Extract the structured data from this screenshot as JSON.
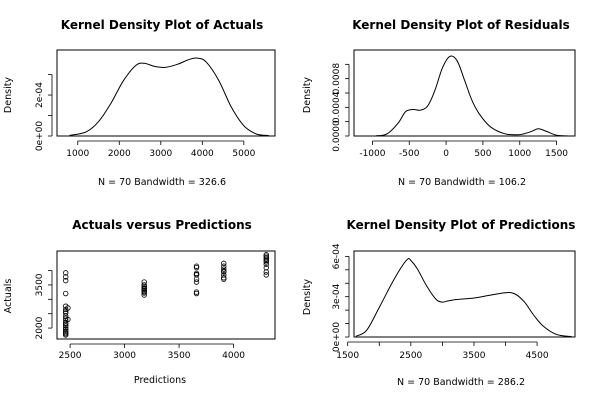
{
  "chart_data": [
    {
      "type": "line",
      "title": "Kernel Density Plot of Actuals",
      "xlabel": "N = 70   Bandwidth = 326.6",
      "ylabel": "Density",
      "xlim": [
        500,
        5750
      ],
      "ylim": [
        0,
        0.00042
      ],
      "xticks": [
        1000,
        2000,
        3000,
        4000,
        5000
      ],
      "xtick_labels": [
        "1000",
        "2000",
        "3000",
        "4000",
        "5000"
      ],
      "yticks": [
        0,
        0.0002
      ],
      "ytick_labels": [
        "0e+00",
        "2e-04"
      ],
      "extra_yticks": [
        0.0001,
        0.0003
      ],
      "series": [
        {
          "x": [
            800,
            1200,
            1500,
            1800,
            2100,
            2400,
            2600,
            2850,
            3100,
            3400,
            3700,
            3900,
            4100,
            4400,
            4700,
            5000,
            5300,
            5600
          ],
          "y": [
            3e-06,
            2e-05,
            7e-05,
            0.00016,
            0.00027,
            0.000345,
            0.000355,
            0.00034,
            0.000335,
            0.00035,
            0.000375,
            0.00038,
            0.00036,
            0.00027,
            0.00014,
            5e-05,
            1e-05,
            2e-06
          ]
        }
      ]
    },
    {
      "type": "line",
      "title": "Kernel Density Plot of Residuals",
      "xlabel": "N = 70   Bandwidth = 106.2",
      "ylabel": "Density",
      "xlim": [
        -1250,
        1750
      ],
      "ylim": [
        0,
        0.0012
      ],
      "xticks": [
        -1000,
        -500,
        0,
        500,
        1000,
        1500
      ],
      "xtick_labels": [
        "-1000",
        "-500",
        "0",
        "500",
        "1000",
        "1500"
      ],
      "yticks": [
        0,
        0.0004,
        0.0008
      ],
      "ytick_labels": [
        "0.0000",
        "0.0004",
        "0.0008"
      ],
      "extra_yticks": [
        0.0002,
        0.0006,
        0.001
      ],
      "series": [
        {
          "x": [
            -950,
            -800,
            -650,
            -550,
            -450,
            -350,
            -250,
            -150,
            -50,
            50,
            150,
            250,
            350,
            450,
            600,
            800,
            1000,
            1150,
            1250,
            1350,
            1500,
            1650
          ],
          "y": [
            3e-06,
            3e-05,
            0.00018,
            0.00034,
            0.00037,
            0.00036,
            0.00042,
            0.00064,
            0.00095,
            0.00111,
            0.00105,
            0.00078,
            0.0005,
            0.00031,
            0.00013,
            3e-05,
            2e-05,
            6e-05,
            0.0001,
            7e-05,
            1e-05,
            1e-06
          ]
        }
      ]
    },
    {
      "type": "scatter",
      "title": "Actuals versus Predictions",
      "xlabel": "Predictions",
      "ylabel": "Actuals",
      "xlim": [
        2380,
        4380
      ],
      "ylim": [
        1620,
        4680
      ],
      "xticks": [
        2500,
        3000,
        3500,
        4000
      ],
      "xtick_labels": [
        "2500",
        "3000",
        "3500",
        "4000"
      ],
      "yticks": [
        2000,
        3500
      ],
      "ytick_labels": [
        "2000",
        "3500"
      ],
      "extra_yticks": [
        2500,
        3000,
        4000
      ],
      "series": [
        {
          "x": [
            2460,
            2460,
            2460,
            2460,
            2460,
            2460,
            2460,
            2460,
            2460,
            2460,
            2460,
            2460,
            2460,
            2460,
            2460,
            2460,
            2460,
            2460,
            2460,
            2460,
            2480,
            2480,
            3180,
            3180,
            3180,
            3180,
            3180,
            3180,
            3180,
            3180,
            3180,
            3180,
            3660,
            3660,
            3660,
            3660,
            3660,
            3660,
            3660,
            3660,
            3660,
            3910,
            3910,
            3910,
            3910,
            3910,
            3910,
            3910,
            3910,
            4300,
            4300,
            4300,
            4300,
            4300,
            4300,
            4300,
            4300,
            4300,
            4300
          ],
          "y": [
            3920,
            3780,
            3200,
            2760,
            2650,
            2580,
            2520,
            2420,
            2340,
            2260,
            2180,
            2140,
            2080,
            2010,
            1950,
            1890,
            1840,
            1800,
            1760,
            3650,
            2700,
            2300,
            3600,
            3500,
            3450,
            3400,
            3350,
            3300,
            3260,
            3220,
            3150,
            3380,
            4150,
            4100,
            3900,
            3850,
            3600,
            3250,
            3200,
            3700,
            3860,
            4250,
            4150,
            4050,
            3980,
            3850,
            3750,
            3700,
            3950,
            4550,
            4500,
            4450,
            4400,
            4350,
            4300,
            4220,
            4100,
            3950,
            3850
          ]
        }
      ]
    },
    {
      "type": "line",
      "title": "Kernel Density Plot of Predictions",
      "xlabel": "N = 70   Bandwidth = 286.2",
      "ylabel": "Density",
      "xlim": [
        1600,
        5100
      ],
      "ylim": [
        0,
        0.00064
      ],
      "xticks": [
        1500,
        2500,
        3500,
        4500
      ],
      "xtick_labels": [
        "1500",
        "2500",
        "3500",
        "4500"
      ],
      "extra_xticks": [
        2000,
        3000,
        4000
      ],
      "yticks": [
        0,
        0.0003,
        0.0006
      ],
      "ytick_labels": [
        "0e+00",
        "3e-04",
        "6e-04"
      ],
      "extra_yticks": [
        0.0001,
        0.0002,
        0.0004,
        0.0005
      ],
      "series": [
        {
          "x": [
            1630,
            1800,
            2000,
            2200,
            2350,
            2450,
            2500,
            2600,
            2750,
            2900,
            3000,
            3100,
            3250,
            3500,
            3750,
            4000,
            4150,
            4300,
            4450,
            4600,
            4800,
            5050
          ],
          "y": [
            5e-06,
            5e-05,
            0.00022,
            0.0004,
            0.00052,
            0.00058,
            0.00057,
            0.00051,
            0.00038,
            0.00028,
            0.00026,
            0.00027,
            0.00028,
            0.00029,
            0.00031,
            0.00033,
            0.00032,
            0.00026,
            0.00016,
            8e-05,
            2e-05,
            2e-06
          ]
        }
      ]
    }
  ]
}
